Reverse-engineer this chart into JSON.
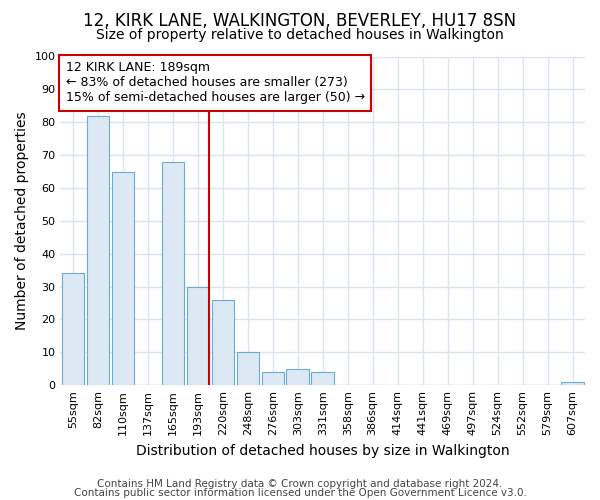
{
  "title": "12, KIRK LANE, WALKINGTON, BEVERLEY, HU17 8SN",
  "subtitle": "Size of property relative to detached houses in Walkington",
  "xlabel": "Distribution of detached houses by size in Walkington",
  "ylabel": "Number of detached properties",
  "categories": [
    "55sqm",
    "82sqm",
    "110sqm",
    "137sqm",
    "165sqm",
    "193sqm",
    "220sqm",
    "248sqm",
    "276sqm",
    "303sqm",
    "331sqm",
    "358sqm",
    "386sqm",
    "414sqm",
    "441sqm",
    "469sqm",
    "497sqm",
    "524sqm",
    "552sqm",
    "579sqm",
    "607sqm"
  ],
  "bar_heights": [
    34,
    82,
    65,
    0,
    68,
    30,
    26,
    10,
    4,
    5,
    4,
    0,
    0,
    0,
    0,
    0,
    0,
    0,
    0,
    0,
    1
  ],
  "bar_color": "#dce9f5",
  "bar_edge_color": "#6aaad4",
  "highlight_index": 5,
  "highlight_color": "#cc0000",
  "ylim": [
    0,
    100
  ],
  "yticks": [
    0,
    10,
    20,
    30,
    40,
    50,
    60,
    70,
    80,
    90,
    100
  ],
  "annotation_text": "12 KIRK LANE: 189sqm\n← 83% of detached houses are smaller (273)\n15% of semi-detached houses are larger (50) →",
  "annotation_box_color": "#cc0000",
  "footer_line1": "Contains HM Land Registry data © Crown copyright and database right 2024.",
  "footer_line2": "Contains public sector information licensed under the Open Government Licence v3.0.",
  "background_color": "#ffffff",
  "grid_color": "#d8e4f0",
  "title_fontsize": 12,
  "subtitle_fontsize": 10,
  "axis_label_fontsize": 10,
  "tick_fontsize": 8,
  "annotation_fontsize": 9,
  "footer_fontsize": 7.5
}
